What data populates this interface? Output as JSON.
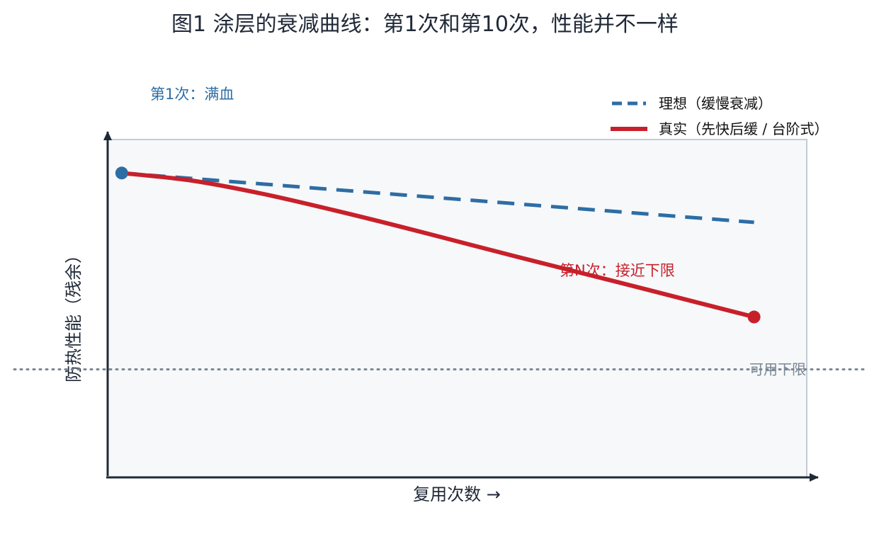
{
  "chart_data": {
    "type": "line",
    "title": "图1 涂层的衰减曲线：第1次和第10次，性能并不一样",
    "xlabel": "复用次数 →",
    "ylabel": "防热性能（残余）",
    "x": [
      1,
      2,
      3,
      4,
      5,
      6,
      7,
      8,
      9,
      10
    ],
    "series": [
      {
        "name": "理想（缓慢衰减）",
        "style": "dashed",
        "color": "#2e6da4",
        "values": [
          100,
          98.2,
          96.4,
          94.6,
          92.8,
          91.0,
          89.2,
          87.4,
          85.6,
          83.8
        ]
      },
      {
        "name": "真实（先快后缓 / 台阶式）",
        "style": "solid",
        "color": "#c8202a",
        "values": [
          100,
          97.5,
          93.2,
          87.9,
          82.2,
          76.2,
          70.3,
          64.5,
          58.6,
          52.7
        ]
      }
    ],
    "threshold": {
      "label": "可用下限",
      "value": 35.5
    },
    "annotations": {
      "start": {
        "text": "第1次：满血",
        "color": "#2e6da4"
      },
      "end": {
        "text": "第N次：接近下限",
        "color": "#c8202a"
      }
    },
    "ylim": [
      0,
      111
    ],
    "xlim": [
      0.8,
      10.75
    ],
    "legend_position": "top-right",
    "grid": false,
    "plot_background": "#f6f8fa",
    "axis_color": "#1f2937"
  }
}
